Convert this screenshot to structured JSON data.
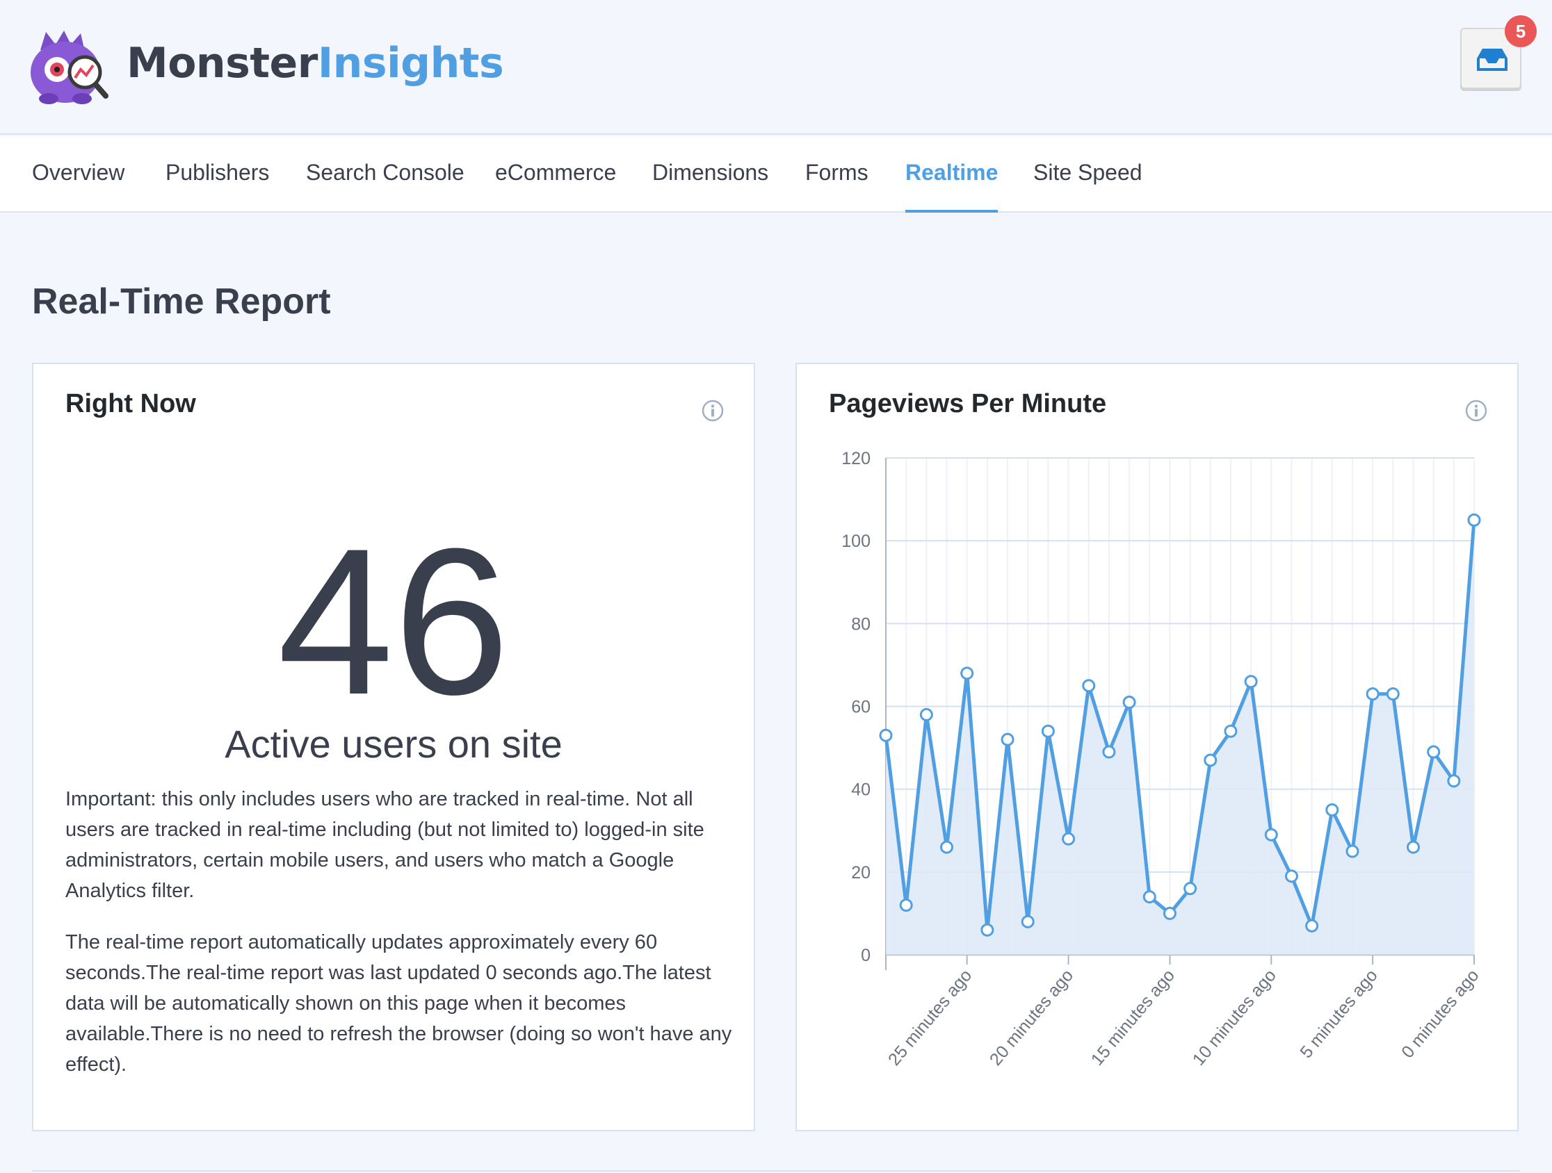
{
  "app": {
    "brand_part1": "Monster",
    "brand_part2": "Insights",
    "notifications_count": "5"
  },
  "nav": {
    "tabs": [
      {
        "label": "Overview",
        "active": false
      },
      {
        "label": "Publishers",
        "active": false
      },
      {
        "label": "Search Console",
        "active": false
      },
      {
        "label": "eCommerce",
        "active": false
      },
      {
        "label": "Dimensions",
        "active": false
      },
      {
        "label": "Forms",
        "active": false
      },
      {
        "label": "Realtime",
        "active": true
      },
      {
        "label": "Site Speed",
        "active": false
      }
    ]
  },
  "page": {
    "title": "Real-Time Report"
  },
  "right_now": {
    "title": "Right Now",
    "active_users": "46",
    "active_label": "Active users on site",
    "note1": "Important: this only includes users who are tracked in real-time. Not all users are tracked in real-time including (but not limited to) logged-in site administrators, certain mobile users, and users who match a Google Analytics filter.",
    "note2": "The real-time report automatically updates approximately every 60 seconds.The real-time report was last updated 0 seconds ago.The latest data will be automatically shown on this page when it becomes available.There is no need to refresh the browser (doing so won't have any effect)."
  },
  "pageviews": {
    "title": "Pageviews Per Minute"
  },
  "colors": {
    "accent": "#509fe2",
    "text": "#393f4c",
    "badge": "#eb5757",
    "area_fill": "#dde9f8"
  },
  "chart_data": {
    "type": "area",
    "title": "Pageviews Per Minute",
    "xlabel": "",
    "ylabel": "",
    "ylim": [
      0,
      120
    ],
    "yticks": [
      0,
      20,
      40,
      60,
      80,
      100,
      120
    ],
    "x_tick_labels": [
      "25 minutes ago",
      "20 minutes ago",
      "15 minutes ago",
      "10 minutes ago",
      "5 minutes ago",
      "0 minutes ago"
    ],
    "x_minutes_ago": [
      29,
      28,
      27,
      26,
      25,
      24,
      23,
      22,
      21,
      20,
      19,
      18,
      17,
      16,
      15,
      14,
      13,
      12,
      11,
      10,
      9,
      8,
      7,
      6,
      5,
      4,
      3,
      2,
      1,
      0
    ],
    "series": [
      {
        "values": [
          53,
          12,
          58,
          26,
          68,
          6,
          52,
          8,
          54,
          28,
          65,
          49,
          61,
          14,
          10,
          16,
          47,
          54,
          66,
          29,
          19,
          7,
          35,
          25,
          63,
          63,
          26,
          49,
          42,
          105
        ]
      }
    ],
    "grid": true
  }
}
